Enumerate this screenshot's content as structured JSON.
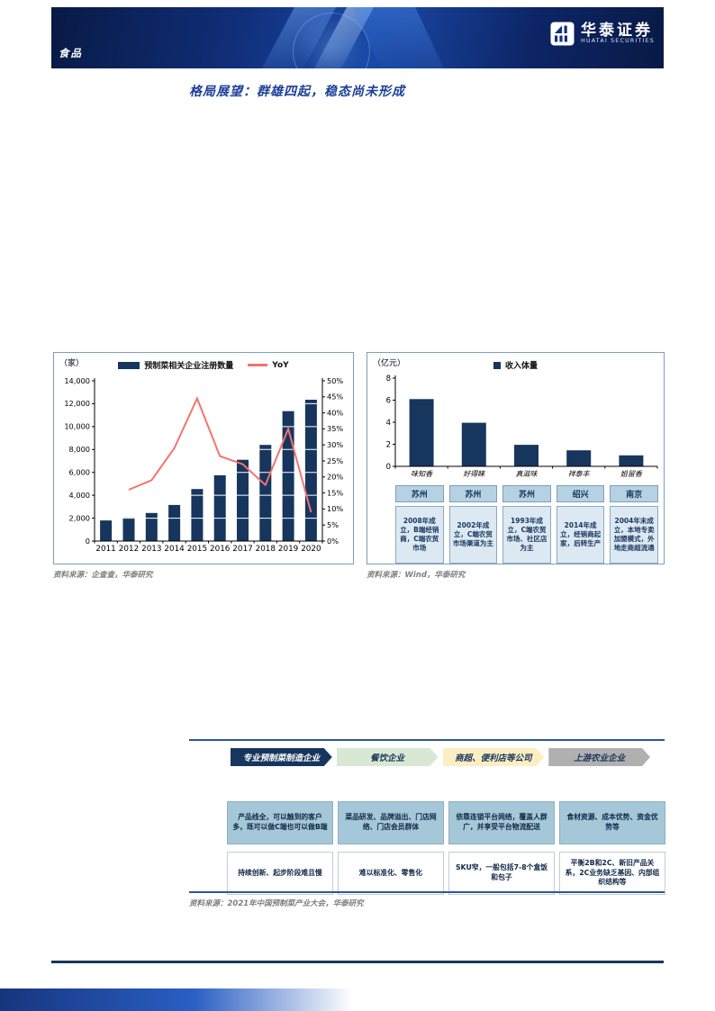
{
  "page": {
    "kicker": "食品",
    "brand": {
      "name_cn": "华泰证券",
      "name_en": "HUATAI SECURITIES"
    },
    "section_title": "格局展望：群雄四起，稳态尚未形成"
  },
  "left_chart": {
    "unit": "（家）",
    "legend_bar_label": "预制菜相关企业注册数量",
    "legend_line_label": "YoY",
    "source": "资料来源：企查查，华泰研究"
  },
  "right_chart": {
    "unit": "（亿元）",
    "legend_label": "收入体量",
    "cities": [
      "苏州",
      "苏州",
      "苏州",
      "绍兴",
      "南京"
    ],
    "descriptions": [
      "2008年成立，B端经销商，C端农贸市场",
      "2002年成立，C端农贸市场渠道为主",
      "1993年成立，C端农贸市场、社区店为主",
      "2014年成立，经销商起家，后转生产",
      "2004年末成立，本地专卖加盟模式，外地走商超流通"
    ],
    "source": "资料来源：Wind，华泰研究"
  },
  "chart_data": [
    {
      "type": "bar",
      "title": "预制菜相关企业注册数量及增速",
      "categories": [
        "2011",
        "2012",
        "2013",
        "2014",
        "2015",
        "2016",
        "2017",
        "2018",
        "2019",
        "2020"
      ],
      "series": [
        {
          "name": "预制菜相关企业注册数量",
          "type": "bar",
          "axis": "left",
          "color": "#17365d",
          "values": [
            1800,
            2050,
            2450,
            3150,
            4550,
            5750,
            7100,
            8400,
            11350,
            12350
          ]
        },
        {
          "name": "YoY",
          "type": "line",
          "axis": "right",
          "color": "#f4736e",
          "values": [
            null,
            16,
            19,
            29,
            44.5,
            26.5,
            24,
            17.5,
            35,
            9
          ]
        }
      ],
      "left_axis": {
        "label": "（家）",
        "min": 0,
        "max": 14000,
        "step": 2000
      },
      "right_axis": {
        "min": 0,
        "max": 50,
        "step": 5,
        "suffix": "%"
      },
      "grid": false,
      "legend_position": "top"
    },
    {
      "type": "bar",
      "title": "区域预制菜企业收入体量",
      "categories": [
        "味知香",
        "好得睐",
        "真滋味",
        "祥泰丰",
        "姐留香"
      ],
      "values": [
        6.1,
        3.95,
        1.95,
        1.45,
        1.0
      ],
      "ylabel": "（亿元）",
      "ylim": [
        0,
        8
      ],
      "step": 2,
      "color": "#17365d",
      "legend": "收入体量",
      "legend_position": "top"
    }
  ],
  "value_chain": {
    "arrows": [
      {
        "label": "专业预制菜制造企业",
        "bg": "#17365d",
        "color": "#ffffff"
      },
      {
        "label": "餐饮企业",
        "bg": "#d9e8d2",
        "color": "#17365d"
      },
      {
        "label": "商超、便利店等公司",
        "bg": "#fdeec2",
        "color": "#17365d"
      },
      {
        "label": "上游农业企业",
        "bg": "#b0b0b0",
        "color": "#17365d"
      }
    ],
    "pros": [
      "产品线全，可以触到的客户多，既可以做C端也可以做B端",
      "菜品研发、品牌溢出、门店网络、门店会员群体",
      "依靠连锁平台网络，覆盖人群广，并享受平台物流配送",
      "食材资源、成本优势、资金优势等"
    ],
    "cons": [
      "持续创新、起步阶段难且慢",
      "难以标准化、零售化",
      "SKU窄，一般包括7-8个盒饭和包子",
      "平衡2B和2C、新旧产品关系，2C业务缺乏基因、内部组织结构等"
    ],
    "source": "资料来源：2021年中国预制菜产业大会，华泰研究"
  }
}
